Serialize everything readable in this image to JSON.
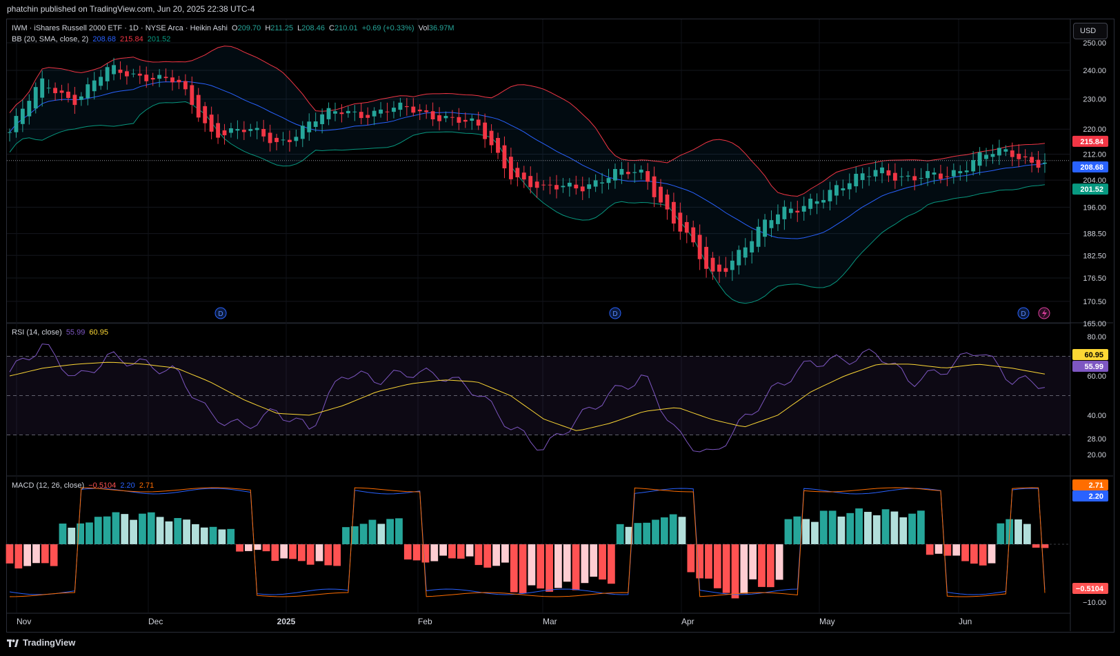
{
  "publisher": "phatchin published on TradingView.com, Jun 20, 2025 22:38 UTC-4",
  "currency_button": "USD",
  "footer_brand": "TradingView",
  "colors": {
    "up": "#26a69a",
    "down": "#f23645",
    "bb_basis": "#2962ff",
    "bb_upper": "#f23645",
    "bb_lower": "#089981",
    "rsi": "#7e57c2",
    "rsi_ma": "#fdd835",
    "macd": "#2962ff",
    "signal": "#ff6d00",
    "hist_up_strong": "#26a69a",
    "hist_up_weak": "#b2dfdb",
    "hist_down_strong": "#ff5252",
    "hist_down_weak": "#ffcdd2"
  },
  "price_legend": {
    "symbol": "IWM · iShares Russell 2000 ETF · 1D · NYSE Arca · Heikin Ashi",
    "o_label": "O",
    "o": "209.70",
    "h_label": "H",
    "h": "211.25",
    "l_label": "L",
    "l": "208.46",
    "c_label": "C",
    "c": "210.01",
    "change": "+0.69 (+0.33%)",
    "vol_label": "Vol",
    "vol": "36.97M"
  },
  "bb_legend": {
    "label": "BB (20, SMA, close, 2)",
    "basis": "208.68",
    "upper": "215.84",
    "lower": "201.52"
  },
  "rsi_legend": {
    "label": "RSI (14, close)",
    "rsi": "55.99",
    "ma": "60.95"
  },
  "macd_legend": {
    "label": "MACD (12, 26, close)",
    "hist": "−0.5104",
    "macd": "2.20",
    "signal": "2.71"
  },
  "chart_data": [
    {
      "type": "candlestick",
      "title": "IWM · iShares Russell 2000 ETF · 1D · NYSE Arca · Heikin Ashi",
      "y_axis_scale": "log",
      "y_ticks": [
        "250.00",
        "240.00",
        "230.00",
        "220.00",
        "212.00",
        "204.00",
        "196.00",
        "188.50",
        "182.50",
        "176.50",
        "170.50",
        "165.00"
      ],
      "x_ticks": [
        "Nov",
        "Dec",
        "2025",
        "Feb",
        "Mar",
        "Apr",
        "May",
        "Jun"
      ],
      "dividend_markers": [
        "D",
        "D",
        "D"
      ],
      "close_estimates": {
        "x": [
          "Oct 31",
          "Nov 11",
          "Nov 21",
          "Nov 29",
          "Dec 6",
          "Dec 13",
          "Dec 20",
          "Dec 31",
          "Jan 10",
          "Jan 17",
          "Jan 24",
          "Jan 31",
          "Feb 7",
          "Feb 14",
          "Feb 21",
          "Feb 28",
          "Mar 7",
          "Mar 14",
          "Mar 21",
          "Mar 28",
          "Apr 4",
          "Apr 8",
          "Apr 17",
          "Apr 25",
          "May 2",
          "May 9",
          "May 16",
          "May 23",
          "May 30",
          "Jun 6",
          "Jun 13",
          "Jun 20"
        ],
        "y": [
          219,
          236,
          230,
          240,
          239,
          235,
          220,
          219,
          216,
          222,
          226,
          226,
          226,
          225,
          220,
          207,
          200,
          203,
          205,
          206,
          191,
          176,
          186,
          193,
          199,
          201,
          209,
          203,
          206,
          211,
          212,
          210
        ]
      },
      "price_labels": {
        "bb_upper": "215.84",
        "bb_basis": "208.68",
        "bb_lower": "201.52"
      },
      "bollinger": {
        "length": 20,
        "stddev": 2
      }
    },
    {
      "type": "line",
      "title": "RSI (14, close)",
      "y_ticks": [
        "80.00",
        "60.00",
        "40.00",
        "28.00",
        "20.00"
      ],
      "bands": [
        70,
        30
      ],
      "series": [
        {
          "name": "RSI",
          "values": [
            62,
            76,
            58,
            70,
            66,
            62,
            40,
            34,
            42,
            33,
            62,
            58,
            62,
            60,
            52,
            34,
            23,
            38,
            51,
            60,
            30,
            19,
            38,
            55,
            67,
            68,
            72,
            57,
            63,
            74,
            58,
            55.99
          ]
        },
        {
          "name": "MA",
          "values": [
            60,
            64,
            66,
            67,
            66,
            64,
            57,
            48,
            41,
            40,
            45,
            52,
            56,
            58,
            57,
            50,
            38,
            32,
            36,
            42,
            44,
            38,
            34,
            40,
            52,
            60,
            66,
            66,
            64,
            66,
            64,
            60.95
          ]
        }
      ],
      "last_labels": {
        "ma": "60.95",
        "rsi": "55.99"
      }
    },
    {
      "type": "bar",
      "title": "MACD (12, 26, close)",
      "y_ticks": [
        "−10.00"
      ],
      "histogram": {
        "values": [
          -3.5,
          -3.0,
          3.0,
          4.4,
          4.4,
          3.6,
          2.4,
          -1.0,
          -2.3,
          -3.0,
          2.8,
          3.6,
          -2.5,
          -2.0,
          -3.2,
          -6.8,
          -6.5,
          -5.4,
          3.0,
          4.1,
          -4.8,
          -7.4,
          -6.0,
          3.8,
          4.7,
          4.9,
          4.6,
          -1.6,
          -2.9,
          3.5,
          -0.5104
        ]
      },
      "macd_last": "2.20",
      "signal_last": "2.71",
      "hist_last": "−0.5104"
    }
  ]
}
